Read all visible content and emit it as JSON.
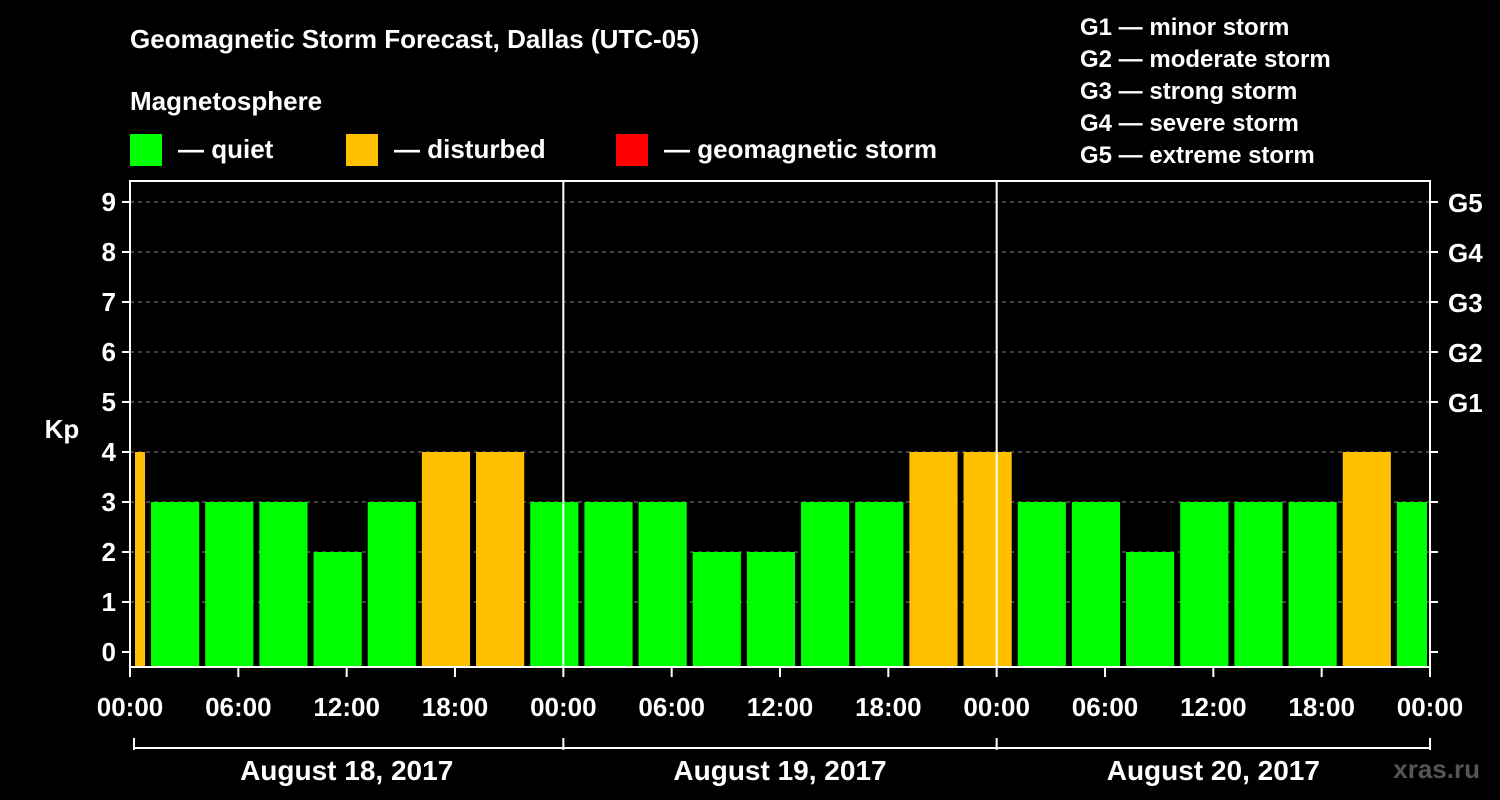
{
  "chart_data": {
    "type": "bar",
    "title": "Geomagnetic Storm Forecast, Dallas (UTC-05)",
    "ylabel": "Kp",
    "ylim": [
      0,
      9
    ],
    "yticks": [
      "0",
      "1",
      "2",
      "3",
      "4",
      "5",
      "6",
      "7",
      "8",
      "9"
    ],
    "right_ticks": [
      {
        "kp": 5,
        "label": "G1"
      },
      {
        "kp": 6,
        "label": "G2"
      },
      {
        "kp": 7,
        "label": "G3"
      },
      {
        "kp": 8,
        "label": "G4"
      },
      {
        "kp": 9,
        "label": "G5"
      }
    ],
    "xlim_hours": [
      0,
      72
    ],
    "xticks": [
      {
        "h": 0,
        "label": "00:00"
      },
      {
        "h": 6,
        "label": "06:00"
      },
      {
        "h": 12,
        "label": "12:00"
      },
      {
        "h": 18,
        "label": "18:00"
      },
      {
        "h": 24,
        "label": "00:00"
      },
      {
        "h": 30,
        "label": "06:00"
      },
      {
        "h": 36,
        "label": "12:00"
      },
      {
        "h": 42,
        "label": "18:00"
      },
      {
        "h": 48,
        "label": "00:00"
      },
      {
        "h": 54,
        "label": "06:00"
      },
      {
        "h": 60,
        "label": "12:00"
      },
      {
        "h": 66,
        "label": "18:00"
      },
      {
        "h": 72,
        "label": "00:00"
      }
    ],
    "days": [
      "August 18, 2017",
      "August 19, 2017",
      "August 20, 2017"
    ],
    "bars": [
      {
        "start": 0,
        "end": 1,
        "kp": 4
      },
      {
        "start": 1,
        "end": 4,
        "kp": 3
      },
      {
        "start": 4,
        "end": 7,
        "kp": 3
      },
      {
        "start": 7,
        "end": 10,
        "kp": 3
      },
      {
        "start": 10,
        "end": 13,
        "kp": 2
      },
      {
        "start": 13,
        "end": 16,
        "kp": 3
      },
      {
        "start": 16,
        "end": 19,
        "kp": 4
      },
      {
        "start": 19,
        "end": 22,
        "kp": 4
      },
      {
        "start": 22,
        "end": 25,
        "kp": 3
      },
      {
        "start": 25,
        "end": 28,
        "kp": 3
      },
      {
        "start": 28,
        "end": 31,
        "kp": 3
      },
      {
        "start": 31,
        "end": 34,
        "kp": 2
      },
      {
        "start": 34,
        "end": 37,
        "kp": 2
      },
      {
        "start": 37,
        "end": 40,
        "kp": 3
      },
      {
        "start": 40,
        "end": 43,
        "kp": 3
      },
      {
        "start": 43,
        "end": 46,
        "kp": 4
      },
      {
        "start": 46,
        "end": 49,
        "kp": 4
      },
      {
        "start": 49,
        "end": 52,
        "kp": 3
      },
      {
        "start": 52,
        "end": 55,
        "kp": 3
      },
      {
        "start": 55,
        "end": 58,
        "kp": 2
      },
      {
        "start": 58,
        "end": 61,
        "kp": 3
      },
      {
        "start": 61,
        "end": 64,
        "kp": 3
      },
      {
        "start": 64,
        "end": 67,
        "kp": 3
      },
      {
        "start": 67,
        "end": 70,
        "kp": 4
      },
      {
        "start": 70,
        "end": 72,
        "kp": 3
      }
    ],
    "colors": {
      "quiet": "#00ff00",
      "disturbed": "#ffc000",
      "storm": "#ff0000"
    }
  },
  "legend": {
    "heading": "Magnetosphere",
    "quiet": "— quiet",
    "disturbed": "— disturbed",
    "storm": "— geomagnetic storm"
  },
  "scale": [
    "G1 — minor storm",
    "G2 — moderate storm",
    "G3 — strong storm",
    "G4 — severe storm",
    "G5 — extreme storm"
  ],
  "watermark": "xras.ru"
}
